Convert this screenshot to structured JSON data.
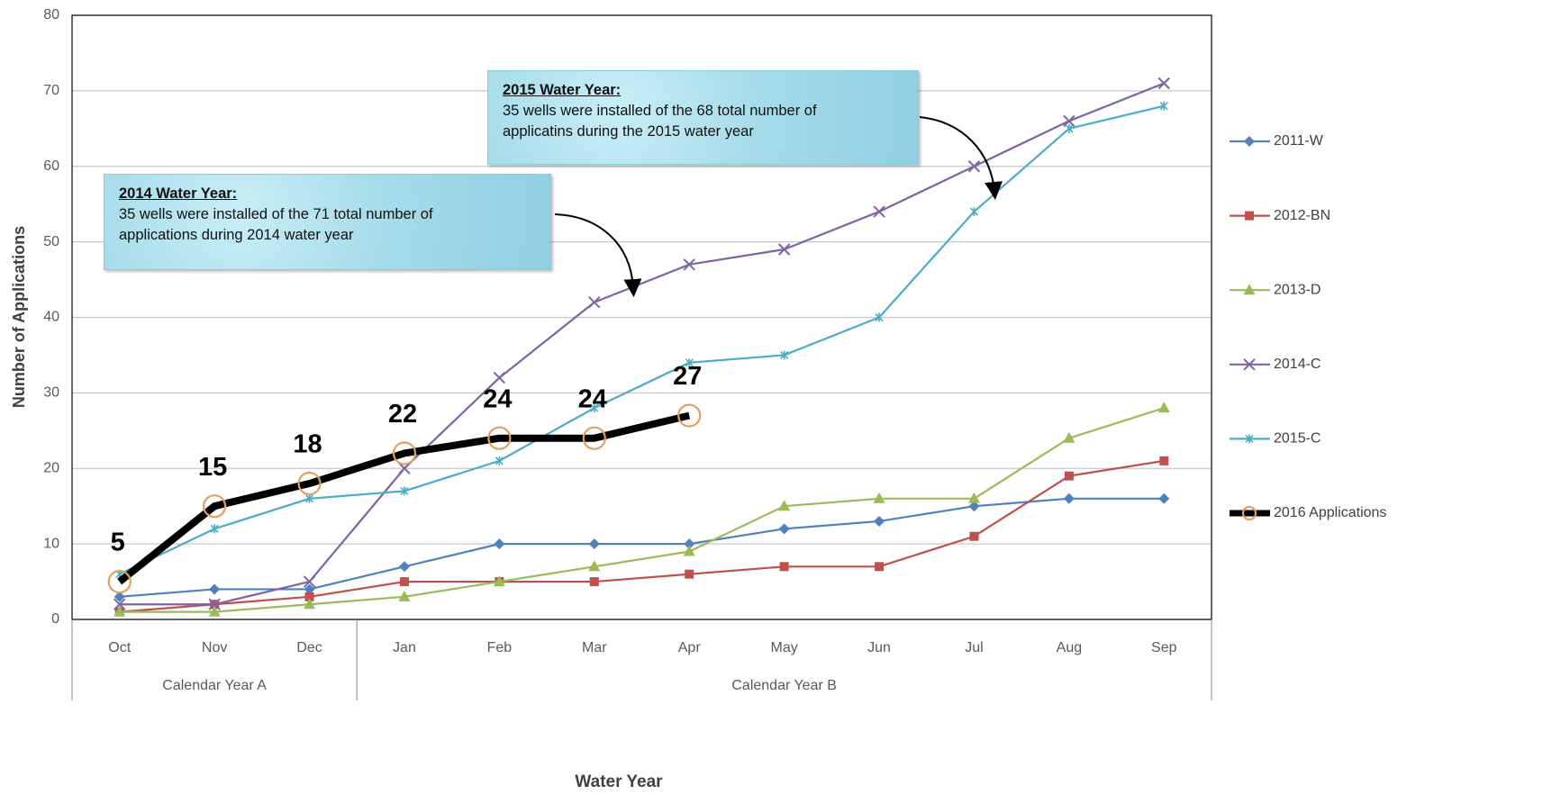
{
  "chart_data": {
    "type": "line",
    "ylabel": "Number of Applications",
    "xlabel": "Water Year",
    "categories": [
      "Oct",
      "Nov",
      "Dec",
      "Jan",
      "Feb",
      "Mar",
      "Apr",
      "May",
      "Jun",
      "Jul",
      "Aug",
      "Sep"
    ],
    "category_groups": [
      {
        "label": "Calendar Year A",
        "size": 3
      },
      {
        "label": "Calendar Year B",
        "size": 9
      }
    ],
    "ylim": [
      0,
      80
    ],
    "yticks": [
      0,
      10,
      20,
      30,
      40,
      50,
      60,
      70,
      80
    ],
    "grid": true,
    "legend": "right",
    "series": [
      {
        "name": "2011-W",
        "color": "#4f81bd",
        "marker": "diamond",
        "values": [
          3,
          4,
          4,
          7,
          10,
          10,
          10,
          12,
          13,
          15,
          16,
          16
        ]
      },
      {
        "name": "2012-BN",
        "color": "#c0504d",
        "marker": "square",
        "values": [
          1,
          2,
          3,
          5,
          5,
          5,
          6,
          7,
          7,
          11,
          19,
          21
        ]
      },
      {
        "name": "2013-D",
        "color": "#9bbb59",
        "marker": "triangle",
        "values": [
          1,
          1,
          2,
          3,
          5,
          7,
          9,
          15,
          16,
          16,
          24,
          28
        ]
      },
      {
        "name": "2014-C",
        "color": "#8064a2",
        "marker": "x",
        "values": [
          2,
          2,
          5,
          20,
          32,
          42,
          47,
          49,
          54,
          60,
          66,
          71
        ]
      },
      {
        "name": "2015-C",
        "color": "#4bacc6",
        "marker": "star",
        "values": [
          6,
          12,
          16,
          17,
          21,
          28,
          34,
          35,
          40,
          54,
          65,
          68
        ]
      },
      {
        "name": "2016 Applications",
        "color": "#000000",
        "marker": "circle",
        "data_labels": true,
        "values": [
          5,
          15,
          18,
          22,
          24,
          24,
          27,
          null,
          null,
          null,
          null,
          null
        ]
      }
    ],
    "annotations": [
      {
        "title": "2014 Water Year:",
        "lines": [
          "35  wells were installed of the 71 total number of",
          "applications during 2014 water year"
        ]
      },
      {
        "title": "2015 Water Year:",
        "lines": [
          "35 wells were installed of the 68 total number of",
          "applicatins during the 2015 water year"
        ]
      }
    ]
  }
}
